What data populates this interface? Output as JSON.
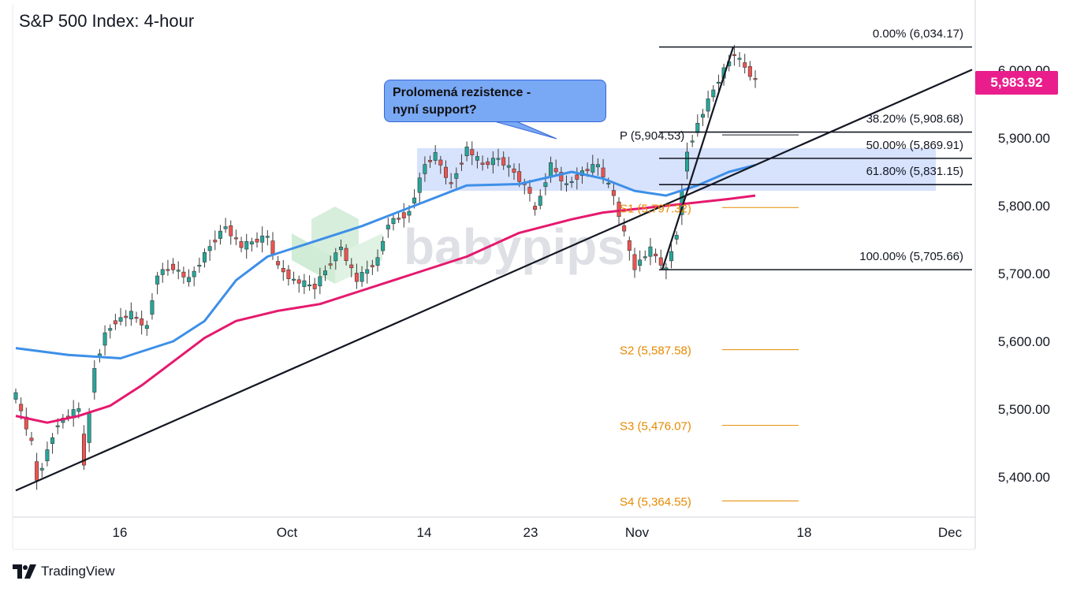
{
  "title": "S&P 500 Index: 4-hour",
  "brand": "TradingView",
  "watermark": "babypips",
  "callout": {
    "line1": "Prolomená rezistence -",
    "line2": "nyní support?"
  },
  "last_price": "5,983.92",
  "colors": {
    "up": "#26a69a",
    "down": "#ef5350",
    "ma_fast": "#3d8fe8",
    "ma_slow": "#e5196e",
    "zone": "#c9d8fb",
    "pivot_s": "#e68a00",
    "price_tag": "#e91e8c",
    "trend": "#131722"
  },
  "chart_data": {
    "type": "candlestick",
    "title": "S&P 500 Index: 4-hour",
    "y_ticks": [
      "5,400.00",
      "5,500.00",
      "5,600.00",
      "5,700.00",
      "5,800.00",
      "5,900.00",
      "6,000.00"
    ],
    "y_tick_values": [
      5400,
      5500,
      5600,
      5700,
      5800,
      5900,
      6000
    ],
    "ylim": [
      5335,
      6060
    ],
    "x_ticks": [
      "16",
      "Oct",
      "14",
      "23",
      "Nov",
      "18",
      "Dec"
    ],
    "price_path": [
      [
        0,
        5520
      ],
      [
        3,
        5450
      ],
      [
        4,
        5395
      ],
      [
        8,
        5480
      ],
      [
        12,
        5500
      ],
      [
        13,
        5420
      ],
      [
        15,
        5560
      ],
      [
        17,
        5610
      ],
      [
        19,
        5630
      ],
      [
        22,
        5640
      ],
      [
        25,
        5620
      ],
      [
        27,
        5700
      ],
      [
        30,
        5710
      ],
      [
        33,
        5690
      ],
      [
        37,
        5740
      ],
      [
        40,
        5770
      ],
      [
        43,
        5740
      ],
      [
        48,
        5755
      ],
      [
        50,
        5710
      ],
      [
        53,
        5690
      ],
      [
        57,
        5680
      ],
      [
        62,
        5740
      ],
      [
        65,
        5690
      ],
      [
        69,
        5720
      ],
      [
        71,
        5775
      ],
      [
        75,
        5790
      ],
      [
        78,
        5860
      ],
      [
        80,
        5875
      ],
      [
        83,
        5830
      ],
      [
        86,
        5885
      ],
      [
        89,
        5860
      ],
      [
        92,
        5870
      ],
      [
        95,
        5850
      ],
      [
        98,
        5820
      ],
      [
        99,
        5790
      ],
      [
        102,
        5860
      ],
      [
        105,
        5830
      ],
      [
        108,
        5850
      ],
      [
        111,
        5860
      ],
      [
        114,
        5815
      ],
      [
        116,
        5760
      ],
      [
        118,
        5710
      ],
      [
        121,
        5735
      ],
      [
        124,
        5705
      ],
      [
        126,
        5760
      ],
      [
        128,
        5880
      ],
      [
        130,
        5920
      ],
      [
        133,
        5970
      ],
      [
        135,
        6000
      ],
      [
        137,
        6025
      ],
      [
        139,
        6005
      ],
      [
        141,
        5985
      ]
    ],
    "ma_fast": [
      [
        0,
        5590
      ],
      [
        10,
        5580
      ],
      [
        20,
        5575
      ],
      [
        30,
        5600
      ],
      [
        36,
        5630
      ],
      [
        42,
        5690
      ],
      [
        48,
        5725
      ],
      [
        56,
        5745
      ],
      [
        66,
        5770
      ],
      [
        76,
        5800
      ],
      [
        86,
        5830
      ],
      [
        96,
        5832
      ],
      [
        106,
        5850
      ],
      [
        112,
        5840
      ],
      [
        118,
        5822
      ],
      [
        124,
        5815
      ],
      [
        130,
        5830
      ],
      [
        136,
        5850
      ],
      [
        141,
        5860
      ]
    ],
    "ma_slow": [
      [
        0,
        5490
      ],
      [
        6,
        5480
      ],
      [
        12,
        5490
      ],
      [
        18,
        5505
      ],
      [
        24,
        5535
      ],
      [
        30,
        5570
      ],
      [
        36,
        5605
      ],
      [
        42,
        5630
      ],
      [
        50,
        5645
      ],
      [
        58,
        5655
      ],
      [
        66,
        5675
      ],
      [
        76,
        5700
      ],
      [
        86,
        5725
      ],
      [
        96,
        5760
      ],
      [
        106,
        5780
      ],
      [
        112,
        5790
      ],
      [
        118,
        5795
      ],
      [
        124,
        5800
      ],
      [
        130,
        5805
      ],
      [
        136,
        5810
      ],
      [
        141,
        5815
      ]
    ],
    "resistance_zone": [
      5822,
      5885
    ],
    "fibonacci": [
      {
        "label": "0.00% (6,034.17)",
        "value": 6034.17
      },
      {
        "label": "38.20% (5,908.68)",
        "value": 5908.68
      },
      {
        "label": "50.00% (5,869.91)",
        "value": 5869.91
      },
      {
        "label": "61.80% (5,831.15)",
        "value": 5831.15
      },
      {
        "label": "100.00% (5,705.66)",
        "value": 5705.66
      }
    ],
    "pivots": [
      {
        "label": "P (5,904.53)",
        "value": 5904.53,
        "color": "#131722"
      },
      {
        "label": "S1 (5,797.32)",
        "value": 5797.32,
        "color": "#e68a00"
      },
      {
        "label": "S2 (5,587.58)",
        "value": 5587.58,
        "color": "#e68a00"
      },
      {
        "label": "S3 (5,476.07)",
        "value": 5476.07,
        "color": "#e68a00"
      },
      {
        "label": "S4 (5,364.55)",
        "value": 5364.55,
        "color": "#e68a00"
      }
    ],
    "trendline": [
      [
        0,
        5380
      ],
      [
        141,
        5860
      ]
    ]
  }
}
